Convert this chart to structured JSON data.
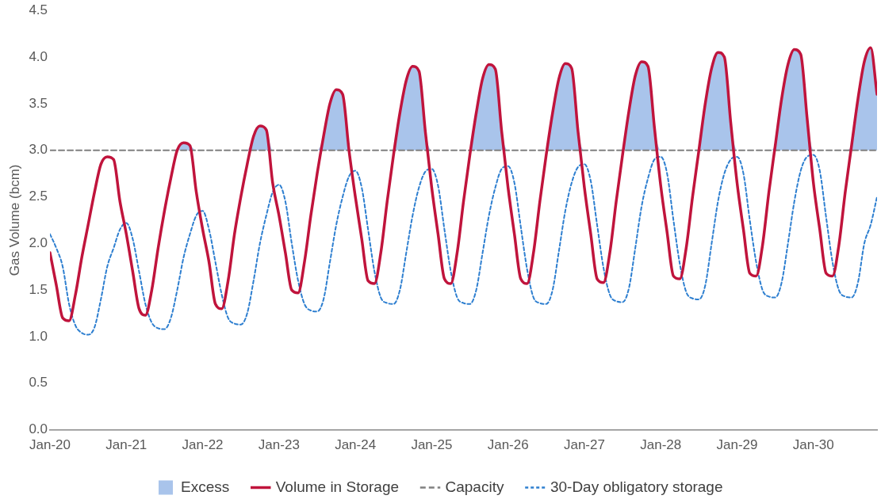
{
  "chart_data": {
    "type": "line",
    "ylabel": "Gas Volume (bcm)",
    "x": [
      "2020-01",
      "2020-02",
      "2020-03",
      "2020-04",
      "2020-05",
      "2020-06",
      "2020-07",
      "2020-08",
      "2020-09",
      "2020-10",
      "2020-11",
      "2020-12",
      "2021-01",
      "2021-02",
      "2021-03",
      "2021-04",
      "2021-05",
      "2021-06",
      "2021-07",
      "2021-08",
      "2021-09",
      "2021-10",
      "2021-11",
      "2021-12",
      "2022-01",
      "2022-02",
      "2022-03",
      "2022-04",
      "2022-05",
      "2022-06",
      "2022-07",
      "2022-08",
      "2022-09",
      "2022-10",
      "2022-11",
      "2022-12",
      "2023-01",
      "2023-02",
      "2023-03",
      "2023-04",
      "2023-05",
      "2023-06",
      "2023-07",
      "2023-08",
      "2023-09",
      "2023-10",
      "2023-11",
      "2023-12",
      "2024-01",
      "2024-02",
      "2024-03",
      "2024-04",
      "2024-05",
      "2024-06",
      "2024-07",
      "2024-08",
      "2024-09",
      "2024-10",
      "2024-11",
      "2024-12",
      "2025-01",
      "2025-02",
      "2025-03",
      "2025-04",
      "2025-05",
      "2025-06",
      "2025-07",
      "2025-08",
      "2025-09",
      "2025-10",
      "2025-11",
      "2025-12",
      "2026-01",
      "2026-02",
      "2026-03",
      "2026-04",
      "2026-05",
      "2026-06",
      "2026-07",
      "2026-08",
      "2026-09",
      "2026-10",
      "2026-11",
      "2026-12",
      "2027-01",
      "2027-02",
      "2027-03",
      "2027-04",
      "2027-05",
      "2027-06",
      "2027-07",
      "2027-08",
      "2027-09",
      "2027-10",
      "2027-11",
      "2027-12",
      "2028-01",
      "2028-02",
      "2028-03",
      "2028-04",
      "2028-05",
      "2028-06",
      "2028-07",
      "2028-08",
      "2028-09",
      "2028-10",
      "2028-11",
      "2028-12",
      "2029-01",
      "2029-02",
      "2029-03",
      "2029-04",
      "2029-05",
      "2029-06",
      "2029-07",
      "2029-08",
      "2029-09",
      "2029-10",
      "2029-11",
      "2029-12",
      "2030-01",
      "2030-02",
      "2030-03",
      "2030-04",
      "2030-05",
      "2030-06",
      "2030-07",
      "2030-08",
      "2030-09",
      "2030-10",
      "2030-11"
    ],
    "series": [
      {
        "name": "Excess",
        "type": "area",
        "color": "#a9c4eb",
        "values": [
          3,
          3,
          3,
          3,
          3,
          3,
          3,
          3,
          3,
          3,
          3,
          3,
          3,
          3,
          3,
          3,
          3,
          3,
          3,
          3,
          3,
          3.08,
          3.05,
          3,
          3,
          3,
          3,
          3,
          3,
          3,
          3,
          3,
          3.15,
          3.26,
          3.22,
          3,
          3,
          3,
          3,
          3,
          3,
          3,
          3,
          3.15,
          3.5,
          3.65,
          3.6,
          3,
          3,
          3,
          3,
          3,
          3,
          3,
          3,
          3.4,
          3.75,
          3.9,
          3.85,
          3.2,
          3,
          3,
          3,
          3,
          3,
          3,
          3,
          3.4,
          3.77,
          3.92,
          3.87,
          3.2,
          3,
          3,
          3,
          3,
          3,
          3,
          3,
          3.4,
          3.77,
          3.93,
          3.88,
          3.2,
          3,
          3,
          3,
          3,
          3,
          3,
          3,
          3.42,
          3.8,
          3.95,
          3.9,
          3.25,
          3,
          3,
          3,
          3,
          3,
          3,
          3,
          3.5,
          3.88,
          4.05,
          4.0,
          3.3,
          3,
          3,
          3,
          3,
          3,
          3,
          3.05,
          3.55,
          3.92,
          4.08,
          4.03,
          3.35,
          3,
          3,
          3,
          3,
          3,
          3,
          3.05,
          3.55,
          3.95,
          4.1,
          3.6
        ]
      },
      {
        "name": "Volume in Storage",
        "type": "line",
        "color": "#c0143c",
        "line_style": "solid",
        "values": [
          1.9,
          1.55,
          1.2,
          1.17,
          1.45,
          1.85,
          2.2,
          2.55,
          2.85,
          2.93,
          2.9,
          2.45,
          2.1,
          1.7,
          1.3,
          1.23,
          1.5,
          1.95,
          2.35,
          2.7,
          3.0,
          3.08,
          3.05,
          2.55,
          2.15,
          1.8,
          1.35,
          1.3,
          1.6,
          2.1,
          2.5,
          2.85,
          3.15,
          3.26,
          3.22,
          2.65,
          2.3,
          1.9,
          1.5,
          1.47,
          1.8,
          2.3,
          2.75,
          3.15,
          3.5,
          3.65,
          3.6,
          3.0,
          2.5,
          2.05,
          1.6,
          1.57,
          1.9,
          2.45,
          2.95,
          3.4,
          3.75,
          3.9,
          3.85,
          3.2,
          2.6,
          2.1,
          1.62,
          1.57,
          1.9,
          2.45,
          2.95,
          3.4,
          3.77,
          3.92,
          3.87,
          3.2,
          2.6,
          2.1,
          1.62,
          1.57,
          1.9,
          2.45,
          2.95,
          3.4,
          3.77,
          3.93,
          3.88,
          3.2,
          2.6,
          2.1,
          1.62,
          1.58,
          1.9,
          2.45,
          2.95,
          3.42,
          3.8,
          3.95,
          3.9,
          3.25,
          2.62,
          2.12,
          1.65,
          1.62,
          1.95,
          2.5,
          3.0,
          3.5,
          3.88,
          4.05,
          4.0,
          3.3,
          2.65,
          2.15,
          1.68,
          1.65,
          1.98,
          2.55,
          3.05,
          3.55,
          3.92,
          4.08,
          4.03,
          3.35,
          2.65,
          2.15,
          1.68,
          1.65,
          1.98,
          2.55,
          3.05,
          3.55,
          3.95,
          4.1,
          3.6
        ]
      },
      {
        "name": "Capacity",
        "type": "line",
        "color": "#808080",
        "line_style": "dashed",
        "x": [
          "2020-01",
          "2030-11"
        ],
        "values": [
          3.0,
          3.0
        ]
      },
      {
        "name": "30-Day obligatory storage",
        "type": "line",
        "color": "#2e7fd0",
        "line_style": "dotted",
        "values": [
          2.1,
          1.95,
          1.75,
          1.35,
          1.12,
          1.04,
          1.02,
          1.1,
          1.4,
          1.75,
          1.95,
          2.15,
          2.22,
          2.05,
          1.7,
          1.35,
          1.15,
          1.09,
          1.08,
          1.2,
          1.5,
          1.85,
          2.1,
          2.3,
          2.35,
          2.15,
          1.8,
          1.45,
          1.2,
          1.14,
          1.13,
          1.25,
          1.6,
          2.0,
          2.3,
          2.55,
          2.63,
          2.45,
          2.0,
          1.6,
          1.35,
          1.28,
          1.27,
          1.4,
          1.8,
          2.2,
          2.5,
          2.72,
          2.78,
          2.6,
          2.15,
          1.7,
          1.42,
          1.36,
          1.35,
          1.5,
          1.9,
          2.3,
          2.6,
          2.77,
          2.8,
          2.62,
          2.15,
          1.7,
          1.42,
          1.36,
          1.35,
          1.5,
          1.9,
          2.3,
          2.6,
          2.8,
          2.83,
          2.65,
          2.18,
          1.72,
          1.42,
          1.36,
          1.35,
          1.5,
          1.92,
          2.35,
          2.65,
          2.82,
          2.85,
          2.67,
          2.2,
          1.74,
          1.45,
          1.38,
          1.37,
          1.52,
          1.95,
          2.4,
          2.7,
          2.9,
          2.93,
          2.75,
          2.25,
          1.78,
          1.48,
          1.41,
          1.4,
          1.55,
          2.0,
          2.45,
          2.75,
          2.9,
          2.93,
          2.75,
          2.25,
          1.8,
          1.5,
          1.43,
          1.42,
          1.58,
          2.0,
          2.45,
          2.78,
          2.93,
          2.95,
          2.78,
          2.28,
          1.8,
          1.5,
          1.43,
          1.42,
          1.58,
          2.0,
          2.2,
          2.5
        ]
      }
    ],
    "xlim": [
      "2020-01",
      "2030-11"
    ],
    "xticks": [
      {
        "value": "2020-01",
        "label": "Jan-20"
      },
      {
        "value": "2021-01",
        "label": "Jan-21"
      },
      {
        "value": "2022-01",
        "label": "Jan-22"
      },
      {
        "value": "2023-01",
        "label": "Jan-23"
      },
      {
        "value": "2024-01",
        "label": "Jan-24"
      },
      {
        "value": "2025-01",
        "label": "Jan-25"
      },
      {
        "value": "2026-01",
        "label": "Jan-26"
      },
      {
        "value": "2027-01",
        "label": "Jan-27"
      },
      {
        "value": "2028-01",
        "label": "Jan-28"
      },
      {
        "value": "2029-01",
        "label": "Jan-29"
      },
      {
        "value": "2030-01",
        "label": "Jan-30"
      }
    ],
    "ylim": [
      0,
      4.5
    ],
    "yticks": [
      {
        "value": 0,
        "label": "0.0"
      },
      {
        "value": 0.5,
        "label": "0.5"
      },
      {
        "value": 1,
        "label": "1.0"
      },
      {
        "value": 1.5,
        "label": "1.5"
      },
      {
        "value": 2,
        "label": "2.0"
      },
      {
        "value": 2.5,
        "label": "2.5"
      },
      {
        "value": 3,
        "label": "3.0"
      },
      {
        "value": 3.5,
        "label": "3.5"
      },
      {
        "value": 4,
        "label": "4.0"
      },
      {
        "value": 4.5,
        "label": "4.5"
      }
    ],
    "grid": false,
    "legend": "bottom",
    "marker": "none"
  }
}
